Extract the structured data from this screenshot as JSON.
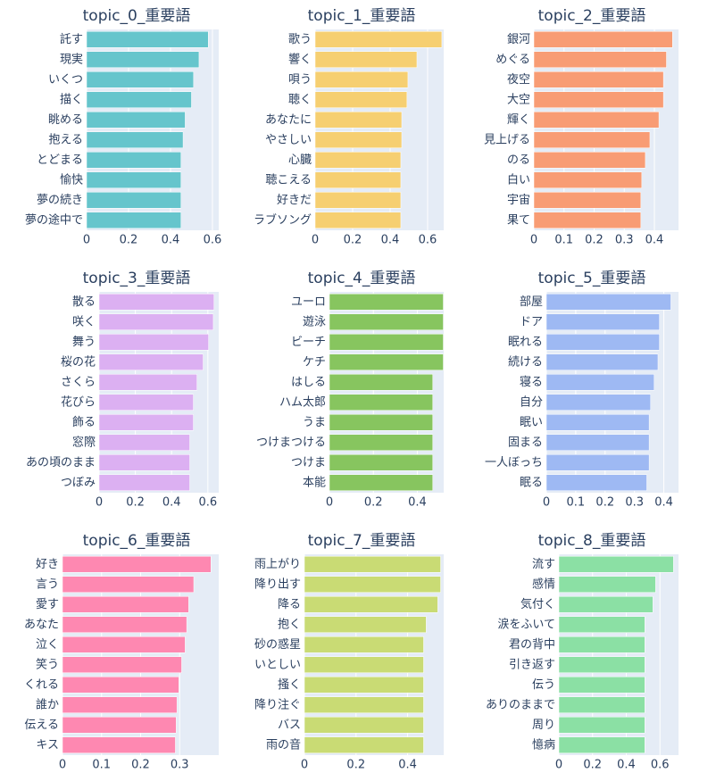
{
  "chart_data": [
    {
      "type": "bar",
      "orientation": "h",
      "title": "topic_0_重要語",
      "color": "#66C5CC",
      "grid": true,
      "categories": [
        "託す",
        "現実",
        "いくつ",
        "描く",
        "眺める",
        "抱える",
        "とどまる",
        "愉快",
        "夢の続き",
        "夢の途中で"
      ],
      "values": [
        0.58,
        0.536,
        0.51,
        0.5,
        0.47,
        0.46,
        0.45,
        0.45,
        0.45,
        0.45
      ],
      "xlim": [
        0,
        0.63
      ],
      "xticks": [
        0,
        0.2,
        0.4,
        0.6
      ]
    },
    {
      "type": "bar",
      "orientation": "h",
      "title": "topic_1_重要語",
      "color": "#F6CF71",
      "grid": true,
      "categories": [
        "歌う",
        "響く",
        "唄う",
        "聴く",
        "あなたに",
        "やさしい",
        "心臓",
        "聴こえる",
        "好きだ",
        "ラブソング"
      ],
      "values": [
        0.676,
        0.543,
        0.495,
        0.49,
        0.462,
        0.462,
        0.457,
        0.457,
        0.457,
        0.457
      ],
      "xlim": [
        0,
        0.686
      ],
      "xticks": [
        0,
        0.2,
        0.4,
        0.6
      ]
    },
    {
      "type": "bar",
      "orientation": "h",
      "title": "topic_2_重要語",
      "color": "#F89C74",
      "grid": true,
      "categories": [
        "銀河",
        "めぐる",
        "夜空",
        "大空",
        "輝く",
        "見上げる",
        "のる",
        "白い",
        "宇宙",
        "果て"
      ],
      "values": [
        0.46,
        0.44,
        0.43,
        0.43,
        0.415,
        0.385,
        0.37,
        0.358,
        0.355,
        0.355
      ],
      "xlim": [
        0,
        0.48
      ],
      "xticks": [
        0,
        0.1,
        0.2,
        0.3,
        0.4
      ]
    },
    {
      "type": "bar",
      "orientation": "h",
      "title": "topic_3_重要語",
      "color": "#DCB0F2",
      "grid": true,
      "categories": [
        "散る",
        "咲く",
        "舞う",
        "桜の花",
        "さくら",
        "花びら",
        "飾る",
        "窓際",
        "あの頃のまま",
        "つぼみ"
      ],
      "values": [
        0.634,
        0.63,
        0.604,
        0.574,
        0.54,
        0.52,
        0.52,
        0.5,
        0.5,
        0.5
      ],
      "xlim": [
        0,
        0.66
      ],
      "xticks": [
        0,
        0.2,
        0.4,
        0.6
      ]
    },
    {
      "type": "bar",
      "orientation": "h",
      "title": "topic_4_重要語",
      "color": "#87C55F",
      "grid": true,
      "categories": [
        "ユーロ",
        "遊泳",
        "ビーチ",
        "ケチ",
        "はしる",
        "ハム太郎",
        "うま",
        "つけまつける",
        "つけま",
        "本能"
      ],
      "values": [
        0.518,
        0.518,
        0.518,
        0.518,
        0.47,
        0.47,
        0.47,
        0.47,
        0.47,
        0.47
      ],
      "xlim": [
        0,
        0.52
      ],
      "xticks": [
        0,
        0.2,
        0.4
      ]
    },
    {
      "type": "bar",
      "orientation": "h",
      "title": "topic_5_重要語",
      "color": "#9EB9F3",
      "grid": true,
      "categories": [
        "部屋",
        "ドア",
        "眠れる",
        "続ける",
        "寝る",
        "自分",
        "眠い",
        "固まる",
        "一人ぼっち",
        "眠る"
      ],
      "values": [
        0.424,
        0.385,
        0.385,
        0.38,
        0.367,
        0.355,
        0.35,
        0.35,
        0.35,
        0.342
      ],
      "xlim": [
        0,
        0.45
      ],
      "xticks": [
        0,
        0.1,
        0.2,
        0.3,
        0.4
      ]
    },
    {
      "type": "bar",
      "orientation": "h",
      "title": "topic_6_重要語",
      "color": "#FE88B1",
      "grid": true,
      "categories": [
        "好き",
        "言う",
        "愛す",
        "あなた",
        "泣く",
        "笑う",
        "くれる",
        "誰か",
        "伝える",
        "キス"
      ],
      "values": [
        0.38,
        0.336,
        0.323,
        0.318,
        0.314,
        0.305,
        0.298,
        0.293,
        0.291,
        0.289
      ],
      "xlim": [
        0,
        0.4
      ],
      "xticks": [
        0,
        0.1,
        0.2,
        0.3
      ]
    },
    {
      "type": "bar",
      "orientation": "h",
      "title": "topic_7_重要語",
      "color": "#C9DB74",
      "grid": true,
      "categories": [
        "雨上がり",
        "降り出す",
        "降る",
        "抱く",
        "砂の惑星",
        "いとしい",
        "掻く",
        "降り注ぐ",
        "バス",
        "雨の音"
      ],
      "values": [
        0.528,
        0.528,
        0.517,
        0.472,
        0.462,
        0.462,
        0.462,
        0.462,
        0.462,
        0.462
      ],
      "xlim": [
        0,
        0.54
      ],
      "xticks": [
        0,
        0.2,
        0.4
      ]
    },
    {
      "type": "bar",
      "orientation": "h",
      "title": "topic_8_重要語",
      "color": "#8BE0A4",
      "grid": true,
      "categories": [
        "流す",
        "感情",
        "気付く",
        "涙をふいて",
        "君の背中",
        "引き返す",
        "伝う",
        "ありのままで",
        "周り",
        "憶病"
      ],
      "values": [
        0.68,
        0.574,
        0.558,
        0.51,
        0.51,
        0.51,
        0.51,
        0.51,
        0.51,
        0.51
      ],
      "xlim": [
        0,
        0.71
      ],
      "xticks": [
        0,
        0.2,
        0.4,
        0.6
      ]
    }
  ]
}
